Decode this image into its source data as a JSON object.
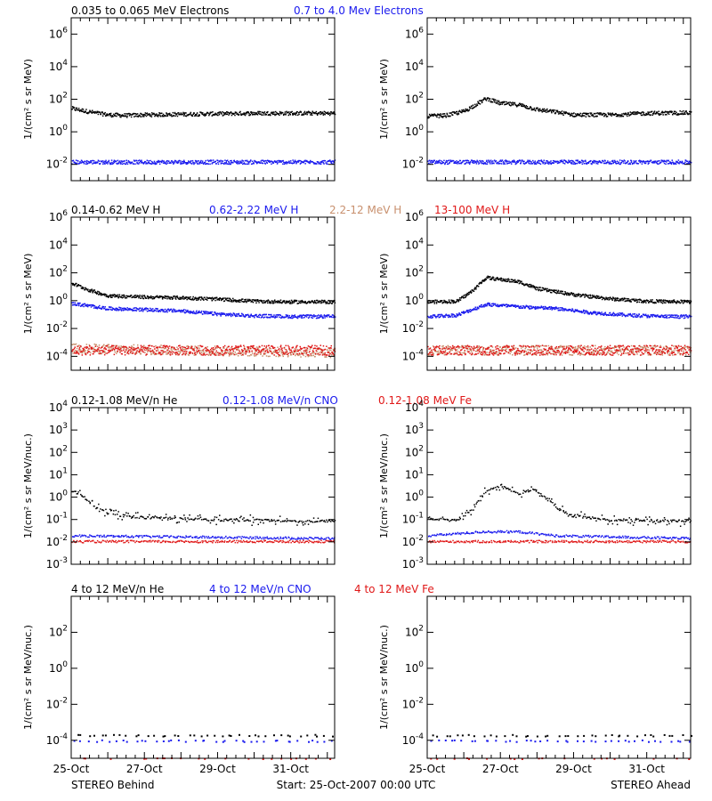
{
  "colors": {
    "black": "#000000",
    "blue": "#1a1aee",
    "tan": "#c8906e",
    "red": "#e01818"
  },
  "rows": [
    {
      "header": [
        {
          "text": "0.035 to 0.065 MeV Electrons",
          "color": "black"
        },
        {
          "text": "0.7 to 4.0 Mev Electrons",
          "color": "blue"
        }
      ],
      "ylabel": "1/(cm² s sr MeV)",
      "yrange_log10": [
        -3,
        7
      ],
      "ticks": [
        {
          "e": -2,
          "label": "10",
          "sup": "-2"
        },
        {
          "e": 0,
          "label": "10",
          "sup": "0"
        },
        {
          "e": 2,
          "label": "10",
          "sup": "2"
        },
        {
          "e": 4,
          "label": "10",
          "sup": "4"
        },
        {
          "e": 6,
          "label": "10",
          "sup": "6"
        }
      ]
    },
    {
      "header": [
        {
          "text": "0.14-0.62 MeV H",
          "color": "black"
        },
        {
          "text": "0.62-2.22 MeV H",
          "color": "blue"
        },
        {
          "text": "2.2-12 MeV H",
          "color": "tan"
        },
        {
          "text": "13-100 MeV H",
          "color": "red"
        }
      ],
      "ylabel": "1/(cm² s sr MeV)",
      "yrange_log10": [
        -5,
        6
      ],
      "ticks": [
        {
          "e": -4,
          "label": "10",
          "sup": "-4"
        },
        {
          "e": -2,
          "label": "10",
          "sup": "-2"
        },
        {
          "e": 0,
          "label": "10",
          "sup": "0"
        },
        {
          "e": 2,
          "label": "10",
          "sup": "2"
        },
        {
          "e": 4,
          "label": "10",
          "sup": "4"
        },
        {
          "e": 6,
          "label": "10",
          "sup": "6"
        }
      ]
    },
    {
      "header": [
        {
          "text": "0.12-1.08 MeV/n He",
          "color": "black"
        },
        {
          "text": "0.12-1.08 MeV/n CNO",
          "color": "blue"
        },
        {
          "text": "0.12-1.08 MeV Fe",
          "color": "red"
        }
      ],
      "ylabel": "1/(cm² s sr MeV/nuc.)",
      "yrange_log10": [
        -3,
        4
      ],
      "ticks": [
        {
          "e": -3,
          "label": "10",
          "sup": "-3"
        },
        {
          "e": -2,
          "label": "10",
          "sup": "-2"
        },
        {
          "e": -1,
          "label": "10",
          "sup": "-1"
        },
        {
          "e": 0,
          "label": "10",
          "sup": "0"
        },
        {
          "e": 1,
          "label": "10",
          "sup": "1"
        },
        {
          "e": 2,
          "label": "10",
          "sup": "2"
        },
        {
          "e": 3,
          "label": "10",
          "sup": "3"
        },
        {
          "e": 4,
          "label": "10",
          "sup": "4"
        }
      ]
    },
    {
      "header": [
        {
          "text": "4 to 12 MeV/n He",
          "color": "black"
        },
        {
          "text": "4 to 12 MeV/n CNO",
          "color": "blue"
        },
        {
          "text": "4 to 12 MeV Fe",
          "color": "red"
        }
      ],
      "ylabel": "1/(cm² s sr MeV/nuc.)",
      "yrange_log10": [
        -5,
        4
      ],
      "ticks": [
        {
          "e": -4,
          "label": "10",
          "sup": "-4"
        },
        {
          "e": -2,
          "label": "10",
          "sup": "-2"
        },
        {
          "e": 0,
          "label": "10",
          "sup": "0"
        },
        {
          "e": 2,
          "label": "10",
          "sup": "2"
        }
      ]
    }
  ],
  "x_ticks": [
    {
      "day": 25,
      "label": "25-Oct"
    },
    {
      "day": 27,
      "label": "27-Oct"
    },
    {
      "day": 29,
      "label": "29-Oct"
    },
    {
      "day": 31,
      "label": "31-Oct"
    }
  ],
  "x_range_days": [
    25,
    32.2
  ],
  "footer": {
    "left": "STEREO Behind",
    "center": "Start: 25-Oct-2007 00:00 UTC",
    "right": "STEREO Ahead"
  },
  "chart_data": {
    "type": "scatter",
    "x_unit": "day of October 2007 (UTC)",
    "y_scale": "log",
    "panels": [
      {
        "row": 0,
        "spacecraft": "STEREO Behind",
        "series": [
          {
            "name": "0.035 to 0.065 MeV Electrons",
            "color": "black",
            "x": [
              25.0,
              25.5,
              26.0,
              26.5,
              27.0,
              28.0,
              29.0,
              30.0,
              31.0,
              32.2
            ],
            "y": [
              30,
              18,
              12,
              11,
              12,
              13,
              14,
              15,
              15,
              15
            ]
          },
          {
            "name": "0.7 to 4.0 Mev Electrons",
            "color": "blue",
            "x": [
              25.0,
              28.5,
              32.2
            ],
            "y": [
              0.015,
              0.015,
              0.015
            ]
          }
        ]
      },
      {
        "row": 0,
        "spacecraft": "STEREO Ahead",
        "series": [
          {
            "name": "0.035 to 0.065 MeV Electrons",
            "color": "black",
            "x": [
              25.0,
              25.5,
              26.0,
              26.6,
              27.0,
              27.5,
              28.0,
              28.5,
              29.0,
              30.0,
              31.0,
              32.2
            ],
            "y": [
              10,
              11,
              20,
              120,
              60,
              50,
              25,
              18,
              12,
              12,
              15,
              16
            ]
          },
          {
            "name": "0.7 to 4.0 Mev Electrons",
            "color": "blue",
            "x": [
              25.0,
              28.5,
              32.2
            ],
            "y": [
              0.015,
              0.015,
              0.015
            ]
          }
        ]
      },
      {
        "row": 1,
        "spacecraft": "STEREO Behind",
        "series": [
          {
            "name": "0.14-0.62 MeV H",
            "color": "black",
            "x": [
              25.0,
              25.5,
              26.0,
              27.0,
              28.0,
              29.0,
              30.0,
              31.0,
              32.2
            ],
            "y": [
              20,
              6,
              2.5,
              2.0,
              1.8,
              1.4,
              1.0,
              0.9,
              0.9
            ]
          },
          {
            "name": "0.62-2.22 MeV H",
            "color": "blue",
            "x": [
              25.0,
              26.0,
              27.0,
              28.0,
              29.0,
              30.0,
              31.0,
              32.2
            ],
            "y": [
              0.7,
              0.3,
              0.25,
              0.2,
              0.12,
              0.09,
              0.08,
              0.08
            ]
          },
          {
            "name": "2.2-12 MeV H",
            "color": "tan",
            "x": [
              25.0,
              32.2
            ],
            "y": [
              0.0004,
              0.0002
            ]
          },
          {
            "name": "13-100 MeV H",
            "color": "red",
            "x": [
              25.0,
              32.2
            ],
            "y": [
              0.0003,
              0.0003
            ]
          }
        ]
      },
      {
        "row": 1,
        "spacecraft": "STEREO Ahead",
        "series": [
          {
            "name": "0.14-0.62 MeV H",
            "color": "black",
            "x": [
              25.0,
              25.8,
              26.2,
              26.6,
              27.5,
              28.0,
              29.0,
              30.0,
              31.0,
              32.2
            ],
            "y": [
              0.9,
              1.0,
              5,
              50,
              25,
              8,
              3,
              1.5,
              1.0,
              0.9
            ]
          },
          {
            "name": "0.62-2.22 MeV H",
            "color": "blue",
            "x": [
              25.0,
              25.8,
              26.6,
              27.5,
              28.5,
              29.5,
              30.5,
              31.5,
              32.2
            ],
            "y": [
              0.08,
              0.1,
              0.6,
              0.4,
              0.3,
              0.15,
              0.1,
              0.08,
              0.08
            ]
          },
          {
            "name": "2.2-12 MeV H",
            "color": "tan",
            "x": [
              25.0,
              32.2
            ],
            "y": [
              0.0003,
              0.0003
            ]
          },
          {
            "name": "13-100 MeV H",
            "color": "red",
            "x": [
              25.0,
              32.2
            ],
            "y": [
              0.0003,
              0.0003
            ]
          }
        ]
      },
      {
        "row": 2,
        "spacecraft": "STEREO Behind",
        "series": [
          {
            "name": "0.12-1.08 MeV/n He",
            "color": "black",
            "x": [
              25.0,
              25.3,
              25.6,
              26.0,
              26.5,
              27.0,
              28.0,
              29.0,
              30.0,
              31.0,
              32.2
            ],
            "y": [
              2.5,
              1.2,
              0.4,
              0.2,
              0.15,
              0.13,
              0.12,
              0.1,
              0.1,
              0.09,
              0.09
            ]
          },
          {
            "name": "0.12-1.08 MeV/n CNO",
            "color": "blue",
            "x": [
              25.0,
              32.2
            ],
            "y": [
              0.02,
              0.015
            ]
          },
          {
            "name": "0.12-1.08 MeV Fe",
            "color": "red",
            "x": [
              25.0,
              32.2
            ],
            "y": [
              0.011,
              0.011
            ]
          }
        ]
      },
      {
        "row": 2,
        "spacecraft": "STEREO Ahead",
        "series": [
          {
            "name": "0.12-1.08 MeV/n He",
            "color": "black",
            "x": [
              25.0,
              25.8,
              26.2,
              26.6,
              27.0,
              27.5,
              27.9,
              28.3,
              28.6,
              29.0,
              30.0,
              31.0,
              32.2
            ],
            "y": [
              0.12,
              0.1,
              0.3,
              2.0,
              3.5,
              1.5,
              2.5,
              0.8,
              0.3,
              0.15,
              0.1,
              0.1,
              0.09
            ]
          },
          {
            "name": "0.12-1.08 MeV/n CNO",
            "color": "blue",
            "x": [
              25.0,
              26.5,
              27.5,
              28.5,
              32.2
            ],
            "y": [
              0.02,
              0.03,
              0.03,
              0.02,
              0.015
            ]
          },
          {
            "name": "0.12-1.08 MeV Fe",
            "color": "red",
            "x": [
              25.0,
              32.2
            ],
            "y": [
              0.011,
              0.011
            ]
          }
        ]
      },
      {
        "row": 3,
        "spacecraft": "STEREO Behind",
        "series": [
          {
            "name": "4 to 12 MeV/n He",
            "color": "black",
            "x": [
              25.0,
              32.2
            ],
            "y": [
              0.0002,
              0.0002
            ]
          },
          {
            "name": "4 to 12 MeV/n CNO",
            "color": "blue",
            "x": [
              25.0,
              32.2
            ],
            "y": [
              0.0001,
              0.0001
            ]
          },
          {
            "name": "4 to 12 MeV Fe",
            "color": "red",
            "x": [
              25.0,
              32.2
            ],
            "y": [
              1e-05,
              1e-05
            ]
          }
        ]
      },
      {
        "row": 3,
        "spacecraft": "STEREO Ahead",
        "series": [
          {
            "name": "4 to 12 MeV/n He",
            "color": "black",
            "x": [
              25.0,
              32.2
            ],
            "y": [
              0.0002,
              0.0002
            ]
          },
          {
            "name": "4 to 12 MeV/n CNO",
            "color": "blue",
            "x": [
              25.0,
              32.2
            ],
            "y": [
              0.0001,
              0.0001
            ]
          },
          {
            "name": "4 to 12 MeV Fe",
            "color": "red",
            "x": [
              25.0,
              32.2
            ],
            "y": [
              1e-05,
              1e-05
            ]
          }
        ]
      }
    ]
  }
}
